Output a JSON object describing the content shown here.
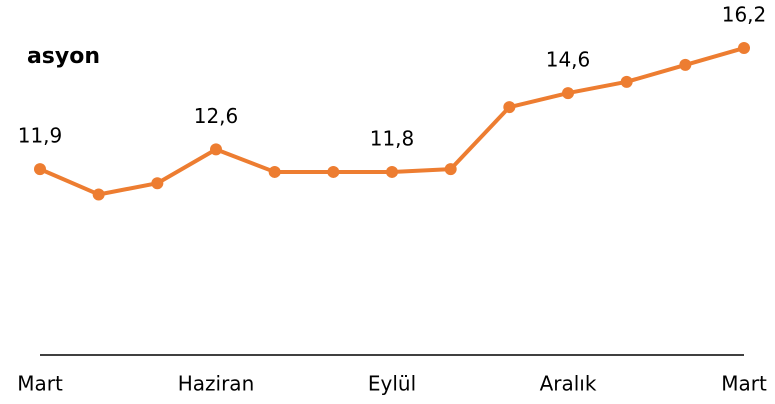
{
  "chart_data": {
    "type": "line",
    "title": "asyon",
    "categories": [
      "Mart",
      null,
      null,
      "Haziran",
      null,
      null,
      "Eylül",
      null,
      null,
      "Aralık",
      null,
      null,
      "Mart"
    ],
    "series": [
      {
        "color": "#ED7D31",
        "values": [
          11.9,
          11.0,
          11.4,
          12.6,
          11.8,
          11.8,
          11.8,
          11.9,
          14.1,
          14.6,
          15.0,
          15.6,
          16.2
        ],
        "value_labels": [
          "11,9",
          null,
          null,
          "12,6",
          null,
          null,
          "11,8",
          null,
          null,
          "14,6",
          null,
          null,
          "16,2"
        ]
      }
    ],
    "ylim": [
      5.3,
      17
    ]
  }
}
